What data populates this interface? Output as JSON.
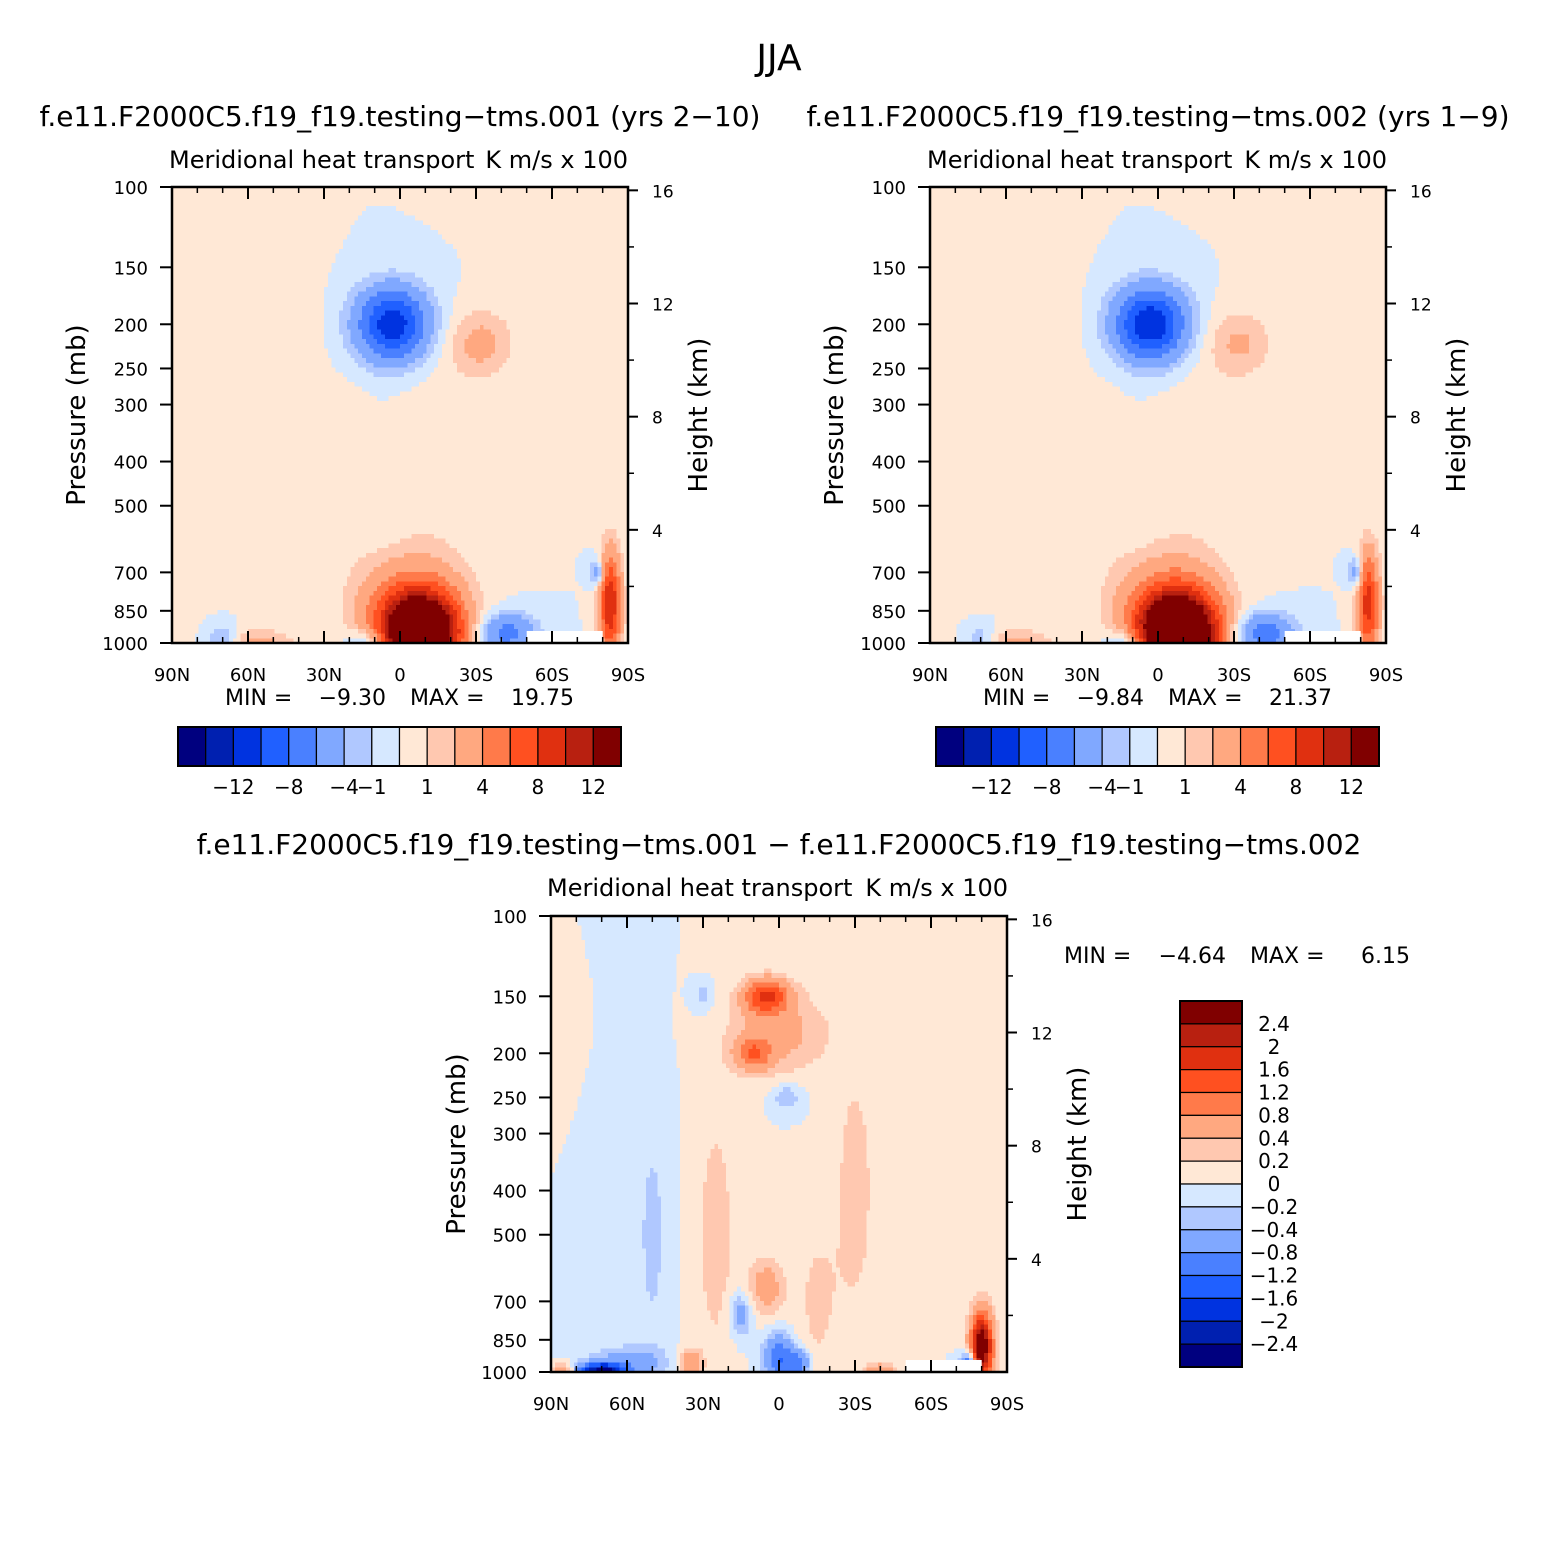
{
  "figure": {
    "title": "JJA"
  },
  "colors": {
    "standard_palette": [
      "#00007f",
      "#0020b0",
      "#0033e0",
      "#2060ff",
      "#4a80ff",
      "#80a8ff",
      "#b0c8ff",
      "#d6e8ff",
      "#ffe8d6",
      "#ffc8b0",
      "#ffa880",
      "#ff7a4a",
      "#ff5020",
      "#e03010",
      "#b82010",
      "#800000"
    ],
    "diff_palette": [
      "#00007f",
      "#0020b0",
      "#0033e0",
      "#2060ff",
      "#4a80ff",
      "#80a8ff",
      "#b0c8ff",
      "#d6e8ff",
      "#ffe8d6",
      "#ffc8b0",
      "#ffa880",
      "#ff7a4a",
      "#ff5020",
      "#e03010",
      "#b82010",
      "#800000"
    ],
    "missing": "#ffffff"
  },
  "chart_data": [
    {
      "type": "heatmap",
      "id": "case1",
      "title": "f.e11.F2000C5.f19_f19.testing−tms.001 (yrs 2−10)",
      "subtitle_left": "Meridional heat transport",
      "subtitle_right": "K m/s x 100",
      "ylabel": "Pressure (mb)",
      "ylabel_right": "Height (km)",
      "x_ticks": [
        "90N",
        "60N",
        "30N",
        "0",
        "30S",
        "60S",
        "90S"
      ],
      "x_range": [
        90,
        -90
      ],
      "y_ticks": [
        100,
        150,
        200,
        250,
        300,
        400,
        500,
        700,
        850,
        1000
      ],
      "y_range": [
        100,
        1000
      ],
      "y_scale": "log",
      "height_ticks": [
        16,
        12,
        8,
        4
      ],
      "min_label": "MIN =",
      "min_value": "−9.30",
      "max_label": "MAX =",
      "max_value": "19.75",
      "colorbar": {
        "orientation": "horizontal",
        "levels": [
          -14,
          -12,
          -10,
          -8,
          -6,
          -4,
          -2,
          -1,
          0,
          1,
          2,
          4,
          6,
          8,
          10,
          12,
          14
        ],
        "tick_labels": [
          "−12",
          "−8",
          "−4",
          "−1",
          "1",
          "4",
          "8",
          "12"
        ]
      },
      "features": [
        {
          "lat": 3,
          "p": 200,
          "amp": -9.3,
          "slat": 10,
          "sz": 0.13
        },
        {
          "lat": -32,
          "p": 220,
          "amp": 2.5,
          "slat": 9,
          "sz": 0.12
        },
        {
          "lat": -15,
          "p": 400,
          "amp": 0.8,
          "slat": 12,
          "sz": 0.35
        },
        {
          "lat": -8,
          "p": 960,
          "amp": 19.75,
          "slat": 10,
          "sz": 0.13
        },
        {
          "lat": -5,
          "p": 850,
          "amp": 6,
          "slat": 14,
          "sz": 0.18
        },
        {
          "lat": 12,
          "p": 1000,
          "amp": -4,
          "slat": 6,
          "sz": 0.05
        },
        {
          "lat": -42,
          "p": 950,
          "amp": -5,
          "slat": 8,
          "sz": 0.07
        },
        {
          "lat": 55,
          "p": 1000,
          "amp": 2.5,
          "slat": 9,
          "sz": 0.05
        },
        {
          "lat": 70,
          "p": 990,
          "amp": -2.5,
          "slat": 4,
          "sz": 0.06
        },
        {
          "lat": 72,
          "p": 300,
          "amp": 0.7,
          "slat": 8,
          "sz": 0.55
        },
        {
          "lat": 40,
          "p": 300,
          "amp": 0.7,
          "slat": 7,
          "sz": 0.5
        },
        {
          "lat": 20,
          "p": 450,
          "amp": 0.6,
          "slat": 6,
          "sz": 0.35
        },
        {
          "lat": -83,
          "p": 820,
          "amp": 10,
          "slat": 3,
          "sz": 0.18
        },
        {
          "lat": -78,
          "p": 700,
          "amp": -4,
          "slat": 2,
          "sz": 0.05
        }
      ]
    },
    {
      "type": "heatmap",
      "id": "case2",
      "title": "f.e11.F2000C5.f19_f19.testing−tms.002 (yrs 1−9)",
      "subtitle_left": "Meridional heat transport",
      "subtitle_right": "K m/s x 100",
      "ylabel": "Pressure (mb)",
      "ylabel_right": "Height (km)",
      "x_ticks": [
        "90N",
        "60N",
        "30N",
        "0",
        "30S",
        "60S",
        "90S"
      ],
      "x_range": [
        90,
        -90
      ],
      "y_ticks": [
        100,
        150,
        200,
        250,
        300,
        400,
        500,
        700,
        850,
        1000
      ],
      "y_range": [
        100,
        1000
      ],
      "y_scale": "log",
      "height_ticks": [
        16,
        12,
        8,
        4
      ],
      "min_label": "MIN =",
      "min_value": "−9.84",
      "max_label": "MAX =",
      "max_value": "21.37",
      "colorbar": {
        "orientation": "horizontal",
        "levels": [
          -14,
          -12,
          -10,
          -8,
          -6,
          -4,
          -2,
          -1,
          0,
          1,
          2,
          4,
          6,
          8,
          10,
          12,
          14
        ],
        "tick_labels": [
          "−12",
          "−8",
          "−4",
          "−1",
          "1",
          "4",
          "8",
          "12"
        ]
      },
      "features": [
        {
          "lat": 3,
          "p": 200,
          "amp": -9.84,
          "slat": 10,
          "sz": 0.13
        },
        {
          "lat": -32,
          "p": 220,
          "amp": 2.2,
          "slat": 9,
          "sz": 0.12
        },
        {
          "lat": -15,
          "p": 400,
          "amp": 0.8,
          "slat": 12,
          "sz": 0.35
        },
        {
          "lat": -8,
          "p": 960,
          "amp": 21.37,
          "slat": 10,
          "sz": 0.13
        },
        {
          "lat": -5,
          "p": 850,
          "amp": 6,
          "slat": 14,
          "sz": 0.18
        },
        {
          "lat": 12,
          "p": 1000,
          "amp": -4,
          "slat": 6,
          "sz": 0.05
        },
        {
          "lat": -42,
          "p": 950,
          "amp": -5.5,
          "slat": 8,
          "sz": 0.07
        },
        {
          "lat": 55,
          "p": 1000,
          "amp": 2.5,
          "slat": 9,
          "sz": 0.05
        },
        {
          "lat": 70,
          "p": 990,
          "amp": -2,
          "slat": 4,
          "sz": 0.06
        },
        {
          "lat": 72,
          "p": 300,
          "amp": 0.7,
          "slat": 8,
          "sz": 0.55
        },
        {
          "lat": 40,
          "p": 300,
          "amp": 0.7,
          "slat": 7,
          "sz": 0.5
        },
        {
          "lat": 20,
          "p": 450,
          "amp": 0.6,
          "slat": 6,
          "sz": 0.35
        },
        {
          "lat": -83,
          "p": 820,
          "amp": 9,
          "slat": 3,
          "sz": 0.18
        },
        {
          "lat": -78,
          "p": 700,
          "amp": -4,
          "slat": 2,
          "sz": 0.05
        }
      ]
    },
    {
      "type": "heatmap",
      "id": "diff",
      "title": "f.e11.F2000C5.f19_f19.testing−tms.001 − f.e11.F2000C5.f19_f19.testing−tms.002",
      "subtitle_left": "Meridional heat transport",
      "subtitle_right": "K m/s x 100",
      "ylabel": "Pressure (mb)",
      "ylabel_right": "Height (km)",
      "x_ticks": [
        "90N",
        "60N",
        "30N",
        "0",
        "30S",
        "60S",
        "90S"
      ],
      "x_range": [
        90,
        -90
      ],
      "y_ticks": [
        100,
        150,
        200,
        250,
        300,
        400,
        500,
        700,
        850,
        1000
      ],
      "y_range": [
        100,
        1000
      ],
      "y_scale": "log",
      "height_ticks": [
        16,
        12,
        8,
        4
      ],
      "min_label": "MIN =",
      "min_value": "−4.64",
      "max_label": "MAX =",
      "max_value": "6.15",
      "colorbar": {
        "orientation": "vertical",
        "levels": [
          -2.8,
          -2.4,
          -2,
          -1.6,
          -1.2,
          -0.8,
          -0.4,
          -0.2,
          0,
          0.2,
          0.4,
          0.8,
          1.2,
          1.6,
          2,
          2.4,
          2.8
        ],
        "tick_labels": [
          "2.4",
          "2",
          "1.6",
          "1.2",
          "0.8",
          "0.4",
          "0.2",
          "0",
          "−0.2",
          "−0.4",
          "−0.8",
          "−1.2",
          "−1.6",
          "−2",
          "−2.4"
        ]
      },
      "features": [
        {
          "lat": 5,
          "p": 150,
          "amp": 1.6,
          "slat": 6,
          "sz": 0.06
        },
        {
          "lat": 10,
          "p": 200,
          "amp": 1.0,
          "slat": 5,
          "sz": 0.06
        },
        {
          "lat": 0,
          "p": 180,
          "amp": 0.5,
          "slat": 14,
          "sz": 0.15
        },
        {
          "lat": -3,
          "p": 250,
          "amp": -0.4,
          "slat": 4,
          "sz": 0.05
        },
        {
          "lat": 30,
          "p": 150,
          "amp": -0.3,
          "slat": 3,
          "sz": 0.05
        },
        {
          "lat": 5,
          "p": 650,
          "amp": 0.6,
          "slat": 5,
          "sz": 0.1
        },
        {
          "lat": 15,
          "p": 750,
          "amp": -0.6,
          "slat": 3,
          "sz": 0.08
        },
        {
          "lat": 0,
          "p": 930,
          "amp": -1.2,
          "slat": 4,
          "sz": 0.08
        },
        {
          "lat": -8,
          "p": 960,
          "amp": -1.0,
          "slat": 3,
          "sz": 0.05
        },
        {
          "lat": 70,
          "p": 1000,
          "amp": -2.6,
          "slat": 6,
          "sz": 0.03
        },
        {
          "lat": 60,
          "p": 960,
          "amp": -0.6,
          "slat": 10,
          "sz": 0.06
        },
        {
          "lat": 35,
          "p": 960,
          "amp": 0.8,
          "slat": 3,
          "sz": 0.05
        },
        {
          "lat": 85,
          "p": 1000,
          "amp": 0.8,
          "slat": 3,
          "sz": 0.03
        },
        {
          "lat": -40,
          "p": 1000,
          "amp": 0.8,
          "slat": 4,
          "sz": 0.03
        },
        {
          "lat": -80,
          "p": 880,
          "amp": 3.0,
          "slat": 3,
          "sz": 0.12
        },
        {
          "lat": -75,
          "p": 960,
          "amp": -1.6,
          "slat": 2,
          "sz": 0.04
        },
        {
          "lat": -30,
          "p": 400,
          "amp": 0.3,
          "slat": 6,
          "sz": 0.5
        },
        {
          "lat": 25,
          "p": 500,
          "amp": 0.3,
          "slat": 6,
          "sz": 0.5
        },
        {
          "lat": -15,
          "p": 700,
          "amp": 0.25,
          "slat": 6,
          "sz": 0.3
        },
        {
          "lat": 50,
          "p": 500,
          "amp": -0.25,
          "slat": 5,
          "sz": 0.5
        }
      ]
    }
  ]
}
